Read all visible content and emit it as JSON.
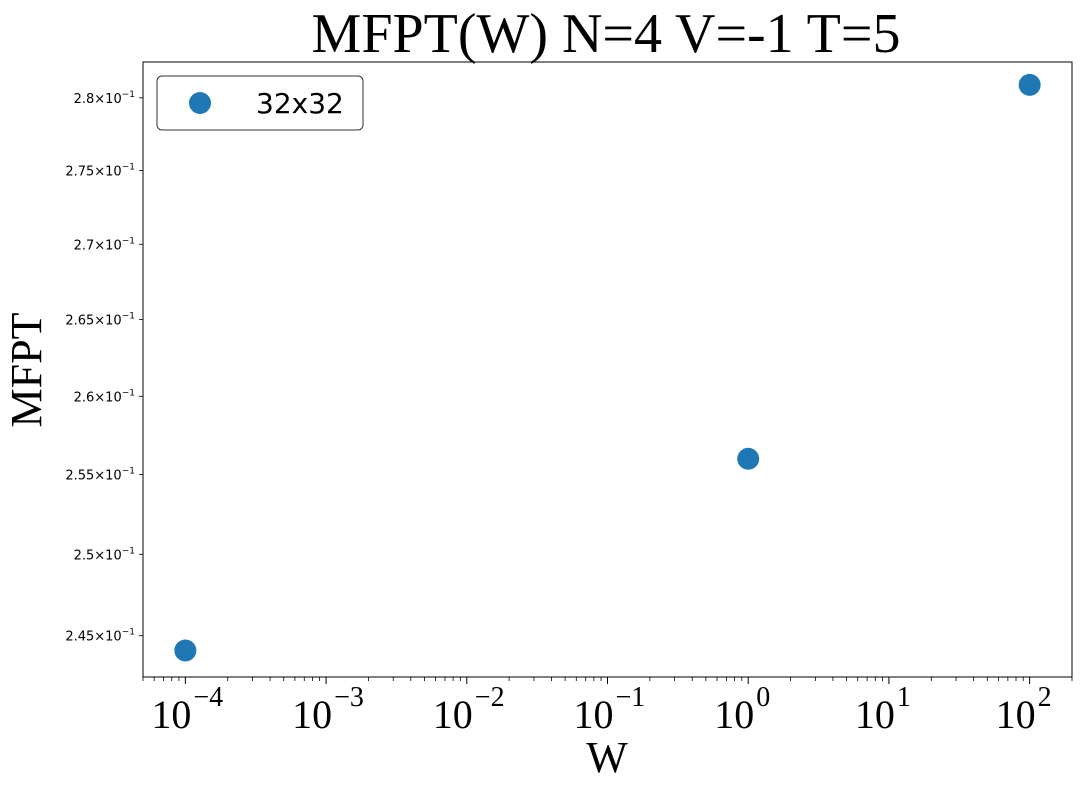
{
  "chart_data": {
    "type": "scatter",
    "title": "MFPT(W) N=4 V=-1 T=5",
    "xlabel": "W",
    "ylabel": "MFPT",
    "xscale": "log",
    "yscale": "log",
    "xlim": [
      5e-05,
      200
    ],
    "ylim": [
      0.2425,
      0.2825
    ],
    "x_ticks": [
      {
        "value": 0.0001,
        "base": "10",
        "exp": "−4"
      },
      {
        "value": 0.001,
        "base": "10",
        "exp": "−3"
      },
      {
        "value": 0.01,
        "base": "10",
        "exp": "−2"
      },
      {
        "value": 0.1,
        "base": "10",
        "exp": "−1"
      },
      {
        "value": 1,
        "base": "10",
        "exp": "0"
      },
      {
        "value": 10,
        "base": "10",
        "exp": "1"
      },
      {
        "value": 100,
        "base": "10",
        "exp": "2"
      }
    ],
    "y_ticks": [
      {
        "value": 0.245,
        "mant": "2.45",
        "exp": "−1"
      },
      {
        "value": 0.25,
        "mant": "2.5",
        "exp": "−1"
      },
      {
        "value": 0.255,
        "mant": "2.55",
        "exp": "−1"
      },
      {
        "value": 0.26,
        "mant": "2.6",
        "exp": "−1"
      },
      {
        "value": 0.265,
        "mant": "2.65",
        "exp": "−1"
      },
      {
        "value": 0.27,
        "mant": "2.7",
        "exp": "−1"
      },
      {
        "value": 0.275,
        "mant": "2.75",
        "exp": "−1"
      },
      {
        "value": 0.28,
        "mant": "2.8",
        "exp": "−1"
      }
    ],
    "series": [
      {
        "name": "32x32",
        "color": "#1f77b4",
        "points": [
          {
            "x": 0.0001,
            "y": 0.2441
          },
          {
            "x": 1,
            "y": 0.256
          },
          {
            "x": 100,
            "y": 0.2809
          }
        ]
      }
    ],
    "legend": "top-left",
    "grid": false
  }
}
